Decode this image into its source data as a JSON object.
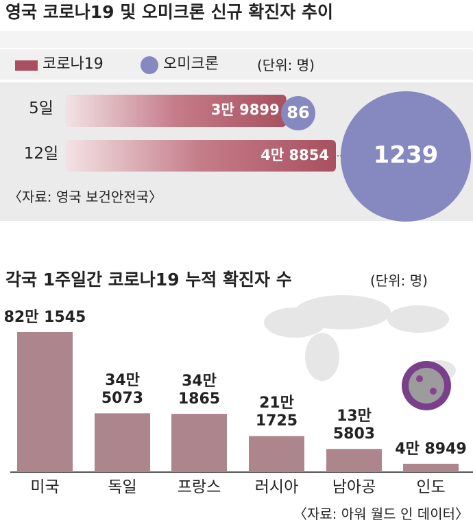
{
  "chart_data": [
    {
      "type": "bar-bubble",
      "title": "영국 코로나19 및 오미크론 신규 확진자 추이",
      "unit": "(단위: 명)",
      "categories": [
        "5일",
        "12일"
      ],
      "series": [
        {
          "name": "코로나19",
          "color": "#a8505f",
          "values": [
            39899,
            48854
          ],
          "value_labels": [
            "3만 9899",
            "4만 8854"
          ]
        },
        {
          "name": "오미크론",
          "color": "#8589c0",
          "values": [
            86,
            1239
          ]
        }
      ],
      "source": "〈자료: 영국 보건안전국〉"
    },
    {
      "type": "bar",
      "title": "각국 1주일간 코로나19 누적 확진자 수",
      "unit": "(단위: 명)",
      "categories": [
        "미국",
        "독일",
        "프랑스",
        "러시아",
        "남아공",
        "인도"
      ],
      "values": [
        821545,
        345073,
        341865,
        211725,
        135803,
        48949
      ],
      "value_labels": [
        "82만 1545",
        "34만\n5073",
        "34만\n1865",
        "21만\n1725",
        "13만\n5803",
        "4만 8949"
      ],
      "color": "#ad858d",
      "source": "〈자료: 아워 월드 인 데이터〉"
    }
  ]
}
